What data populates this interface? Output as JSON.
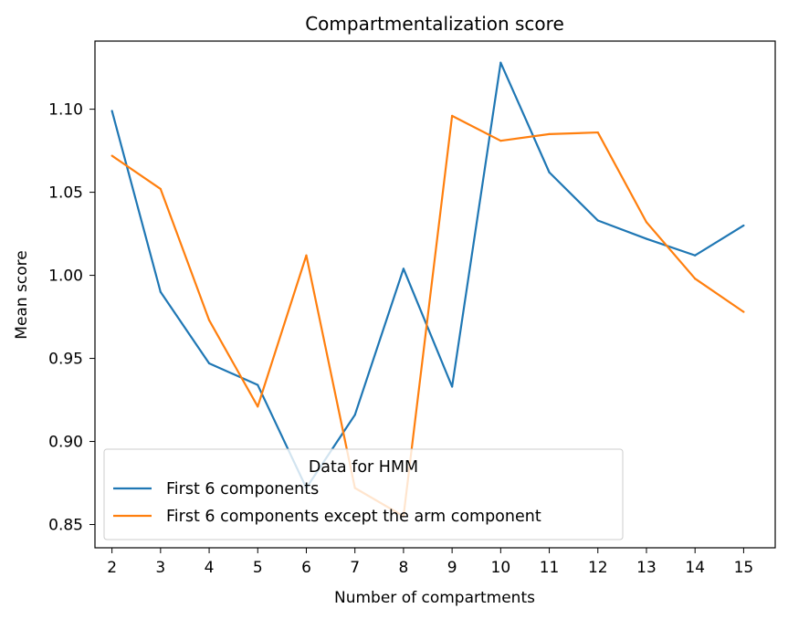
{
  "chart_data": {
    "type": "line",
    "title": "Compartmentalization score",
    "xlabel": "Number of compartments",
    "ylabel": "Mean score",
    "x": [
      2,
      3,
      4,
      5,
      6,
      7,
      8,
      9,
      10,
      11,
      12,
      13,
      14,
      15
    ],
    "xlim": [
      1.65,
      15.65
    ],
    "ylim": [
      0.836,
      1.141
    ],
    "x_ticks": [
      "2",
      "3",
      "4",
      "5",
      "6",
      "7",
      "8",
      "9",
      "10",
      "11",
      "12",
      "13",
      "14",
      "15"
    ],
    "y_ticks": [
      {
        "value": 0.85,
        "label": "0.85"
      },
      {
        "value": 0.9,
        "label": "0.90"
      },
      {
        "value": 0.95,
        "label": "0.95"
      },
      {
        "value": 1.0,
        "label": "1.00"
      },
      {
        "value": 1.05,
        "label": "1.05"
      },
      {
        "value": 1.1,
        "label": "1.10"
      }
    ],
    "grid": false,
    "legend": {
      "title": "Data for HMM",
      "placement": "lower-left"
    },
    "series": [
      {
        "name": "First 6 components",
        "color": "#1f77b4",
        "values": [
          1.099,
          0.99,
          0.947,
          0.934,
          0.872,
          0.916,
          1.004,
          0.933,
          1.128,
          1.062,
          1.033,
          1.022,
          1.012,
          1.03
        ]
      },
      {
        "name": "First 6 components except the arm component",
        "color": "#ff7f0e",
        "values": [
          1.072,
          1.052,
          0.973,
          0.921,
          1.012,
          0.872,
          0.855,
          1.096,
          1.081,
          1.085,
          1.086,
          1.032,
          0.998,
          0.978
        ]
      }
    ]
  }
}
